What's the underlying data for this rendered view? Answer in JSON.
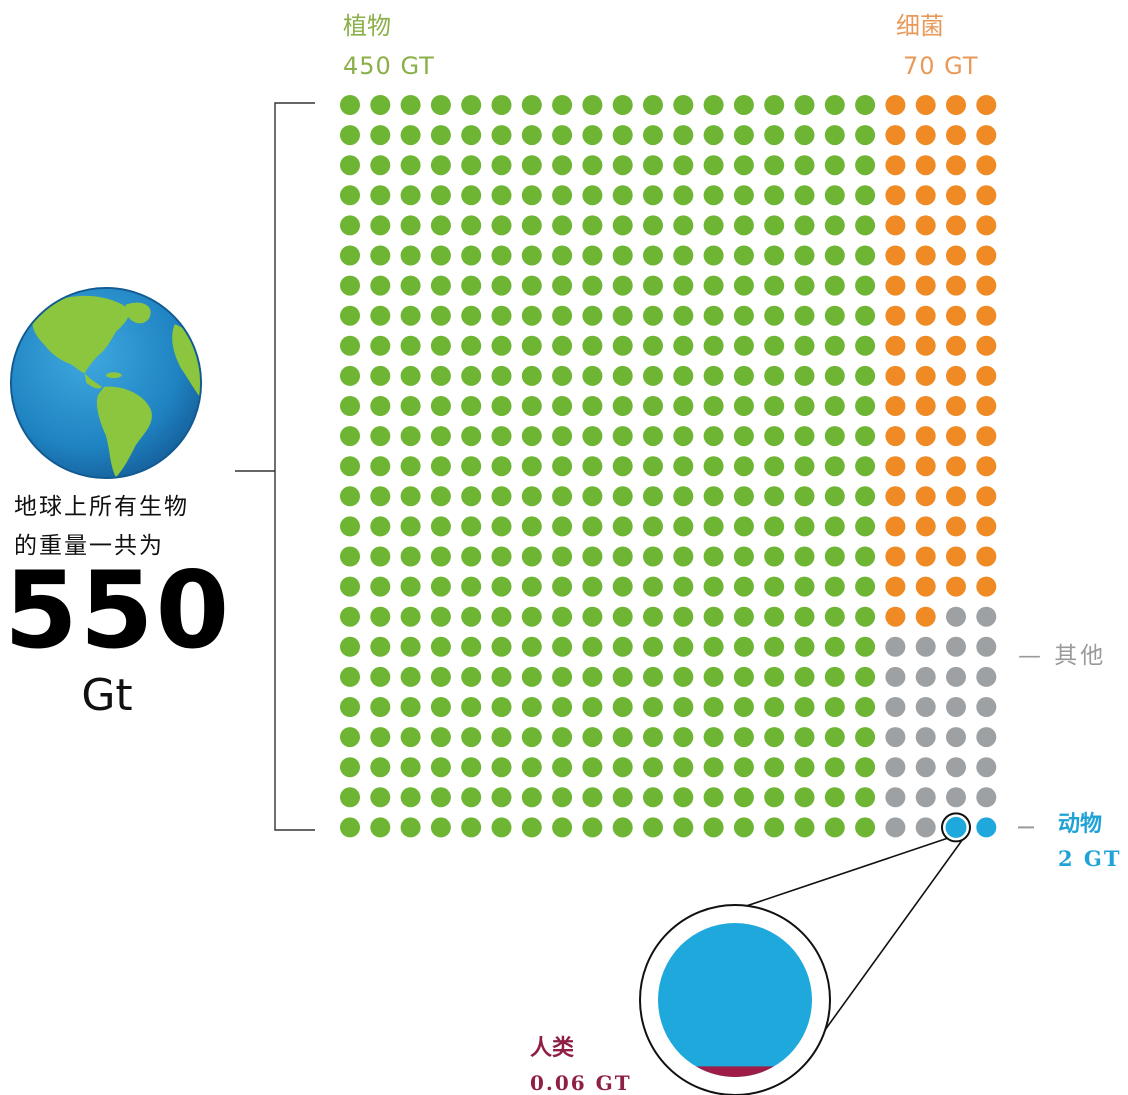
{
  "total": {
    "caption_line1": "地球上所有生物",
    "caption_line2": "的重量一共为",
    "value": "550",
    "unit": "Gt"
  },
  "labels": {
    "plants_name": "植物",
    "plants_value": "450 GT",
    "bacteria_name": "细菌",
    "bacteria_value": "70 GT",
    "other": "— 其他",
    "animals_name": "动物",
    "animals_value": "2 GT",
    "humans_name": "人类",
    "humans_value": "0.06 GT"
  },
  "chart_data": {
    "type": "waffle",
    "grid": {
      "rows": 25,
      "cols": 22
    },
    "unit_value_gt": 1,
    "categories": [
      {
        "name": "植物",
        "value_gt": 450,
        "dots": 450,
        "color": "#6db533"
      },
      {
        "name": "细菌",
        "value_gt": 70,
        "dots": 70,
        "color": "#ef8a24"
      },
      {
        "name": "其他",
        "value_gt": 28,
        "dots": 28,
        "color": "#9ea1a3"
      },
      {
        "name": "动物",
        "value_gt": 2,
        "dots": 2,
        "color": "#1ea8dc"
      }
    ],
    "zoom": {
      "target": "动物",
      "inner_category": "人类",
      "inner_value_gt": 0.06,
      "inner_color": "#9e1c48"
    }
  }
}
